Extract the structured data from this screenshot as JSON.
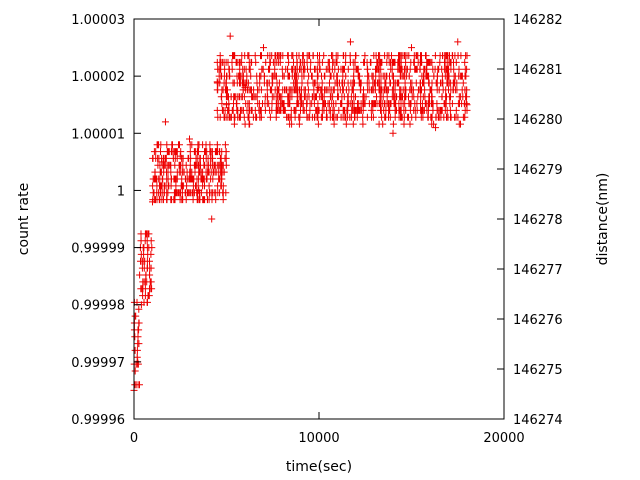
{
  "chart_data": {
    "type": "scatter",
    "xlabel": "time(sec)",
    "ylabel": "count rate",
    "y2label": "distance(nm)",
    "xlim": [
      0,
      20000
    ],
    "ylim": [
      0.99996,
      1.00003
    ],
    "y2lim": [
      146274,
      146282
    ],
    "x_ticks": [
      "0",
      "10000",
      "20000"
    ],
    "y_ticks": [
      "0.99996",
      "0.99997",
      "0.99998",
      "0.99999",
      "1",
      "1.00001",
      "1.00002",
      "1.00003"
    ],
    "y2_ticks": [
      "146274",
      "146275",
      "146276",
      "146277",
      "146278",
      "146279",
      "146280",
      "146281",
      "146282"
    ],
    "grid": false,
    "marker": "plus",
    "series_color": "#ee0000",
    "series": [
      {
        "bands": [
          {
            "x_range": [
              0,
              300
            ],
            "y_range": [
              0.999965,
              0.99998
            ]
          },
          {
            "x_range": [
              300,
              1000
            ],
            "y_range": [
              0.99998,
              0.999993
            ]
          },
          {
            "x_range": [
              1000,
              5000
            ],
            "y_range": [
              0.999998,
              1.000008
            ]
          },
          {
            "x_range": [
              4500,
              18000
            ],
            "y_range": [
              1.000012,
              1.000024
            ]
          }
        ],
        "points": [
          {
            "x": 0,
            "y": 0.999965
          },
          {
            "x": 200,
            "y": 0.99997
          },
          {
            "x": 400,
            "y": 0.99998
          },
          {
            "x": 800,
            "y": 0.99999
          },
          {
            "x": 1000,
            "y": 0.999998
          },
          {
            "x": 1500,
            "y": 1.000005
          },
          {
            "x": 1700,
            "y": 1.000012
          },
          {
            "x": 2500,
            "y": 1.000006
          },
          {
            "x": 3000,
            "y": 1.000009
          },
          {
            "x": 3500,
            "y": 1.0
          },
          {
            "x": 4200,
            "y": 0.999995
          },
          {
            "x": 4500,
            "y": 1.000019
          },
          {
            "x": 5000,
            "y": 1.000015
          },
          {
            "x": 5200,
            "y": 1.000027
          },
          {
            "x": 6000,
            "y": 1.000018
          },
          {
            "x": 7000,
            "y": 1.000025
          },
          {
            "x": 10000,
            "y": 1.000018
          },
          {
            "x": 11700,
            "y": 1.000026
          },
          {
            "x": 14000,
            "y": 1.00001
          },
          {
            "x": 15000,
            "y": 1.000025
          },
          {
            "x": 16300,
            "y": 1.000011
          },
          {
            "x": 17500,
            "y": 1.000026
          },
          {
            "x": 18000,
            "y": 1.000015
          }
        ]
      }
    ]
  }
}
